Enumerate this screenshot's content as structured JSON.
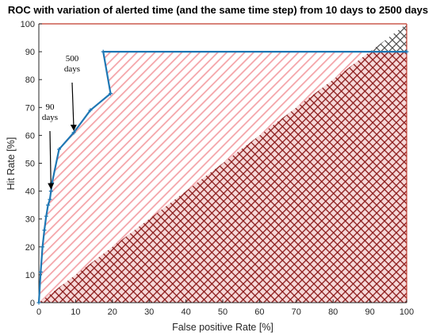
{
  "chart_data": {
    "type": "line",
    "title": "ROC with variation of alerted time (and the same time step) from 10 days to 2500 days",
    "xlabel": "False positive Rate [%]",
    "ylabel": "Hit Rate [%]",
    "xlim": [
      0,
      100
    ],
    "ylim": [
      0,
      100
    ],
    "xticks": [
      0,
      10,
      20,
      30,
      40,
      50,
      60,
      70,
      80,
      90,
      100
    ],
    "yticks": [
      0,
      10,
      20,
      30,
      40,
      50,
      60,
      70,
      80,
      90,
      100
    ],
    "grid": false,
    "series": [
      {
        "color": "#1f77b4",
        "points": [
          [
            0,
            0
          ],
          [
            0.5,
            11
          ],
          [
            1,
            20
          ],
          [
            1.5,
            26
          ],
          [
            2,
            31
          ],
          [
            2.5,
            35
          ],
          [
            3,
            37
          ],
          [
            3.3,
            40
          ],
          [
            3.6,
            43
          ],
          [
            5.5,
            55
          ],
          [
            9.5,
            61
          ],
          [
            14,
            69
          ],
          [
            19.5,
            75
          ],
          [
            17.5,
            90
          ],
          [
            100,
            90
          ]
        ]
      }
    ],
    "annotations": [
      {
        "lines": [
          "500",
          "days"
        ],
        "arrow_to": [
          9.5,
          61
        ]
      },
      {
        "lines": [
          "90",
          "days"
        ],
        "arrow_to": [
          3.3,
          40
        ]
      }
    ],
    "colors": {
      "curve": "#1f77b4",
      "pink_hatch": "#f4a3a8",
      "dark_hatch": "#8b1a1a",
      "gray_hatch": "#5a5a5a",
      "axes_red": "#c0392b"
    }
  }
}
